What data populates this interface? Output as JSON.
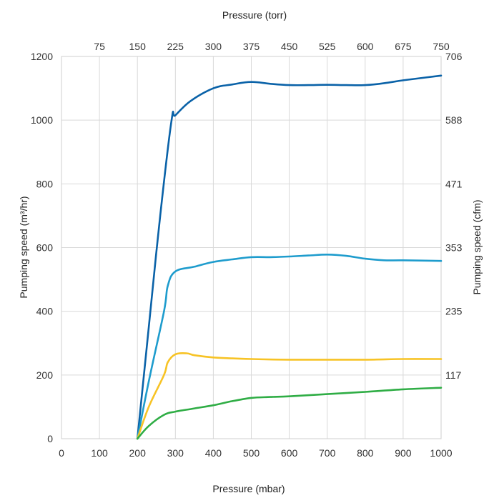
{
  "chart_data": {
    "type": "line",
    "xlabel": "Pressure (mbar)",
    "top_xlabel": "Pressure (torr)",
    "ylabel": "Pumping speed (m³/hr)",
    "right_ylabel": "Pumping speed (cfm)",
    "xlim": [
      0,
      1000
    ],
    "ylim": [
      0,
      1200
    ],
    "x_ticks": [
      "0",
      "100",
      "200",
      "300",
      "400",
      "500",
      "600",
      "700",
      "800",
      "900",
      "1000"
    ],
    "y_ticks": [
      "0",
      "200",
      "400",
      "600",
      "800",
      "1000",
      "1200"
    ],
    "top_ticks": [
      {
        "label": "75",
        "at_mbar": 100
      },
      {
        "label": "150",
        "at_mbar": 200
      },
      {
        "label": "225",
        "at_mbar": 300
      },
      {
        "label": "300",
        "at_mbar": 400
      },
      {
        "label": "375",
        "at_mbar": 500
      },
      {
        "label": "450",
        "at_mbar": 600
      },
      {
        "label": "525",
        "at_mbar": 700
      },
      {
        "label": "600",
        "at_mbar": 800
      },
      {
        "label": "675",
        "at_mbar": 900
      },
      {
        "label": "750",
        "at_mbar": 1000
      }
    ],
    "right_ticks": [
      {
        "label": "117",
        "at_m3hr": 200
      },
      {
        "label": "235",
        "at_m3hr": 400
      },
      {
        "label": "353",
        "at_m3hr": 600
      },
      {
        "label": "471",
        "at_m3hr": 800
      },
      {
        "label": "588",
        "at_m3hr": 1000
      },
      {
        "label": "706",
        "at_m3hr": 1200
      }
    ],
    "grid": true,
    "series": [
      {
        "color": "#0a62a8",
        "x": [
          200,
          230,
          260,
          290,
          300,
          340,
          400,
          450,
          500,
          550,
          600,
          650,
          700,
          750,
          800,
          850,
          900,
          1000
        ],
        "y": [
          0,
          350,
          700,
          1000,
          1015,
          1060,
          1100,
          1112,
          1120,
          1114,
          1110,
          1110,
          1111,
          1110,
          1110,
          1116,
          1125,
          1140
        ]
      },
      {
        "color": "#1e9ccd",
        "x": [
          200,
          230,
          270,
          280,
          300,
          350,
          400,
          450,
          500,
          550,
          600,
          650,
          700,
          750,
          800,
          850,
          900,
          1000
        ],
        "y": [
          0,
          180,
          400,
          480,
          525,
          540,
          555,
          563,
          570,
          570,
          572,
          575,
          578,
          574,
          565,
          560,
          560,
          558
        ]
      },
      {
        "color": "#f7c325",
        "x": [
          200,
          230,
          270,
          280,
          300,
          330,
          350,
          400,
          450,
          500,
          600,
          700,
          800,
          900,
          1000
        ],
        "y": [
          0,
          100,
          200,
          240,
          265,
          268,
          262,
          255,
          252,
          250,
          248,
          248,
          248,
          250,
          250
        ]
      },
      {
        "color": "#2fad45",
        "x": [
          200,
          230,
          270,
          300,
          350,
          400,
          450,
          500,
          550,
          600,
          700,
          800,
          900,
          1000
        ],
        "y": [
          0,
          40,
          75,
          85,
          95,
          105,
          118,
          128,
          131,
          133,
          140,
          147,
          155,
          160
        ]
      }
    ]
  }
}
